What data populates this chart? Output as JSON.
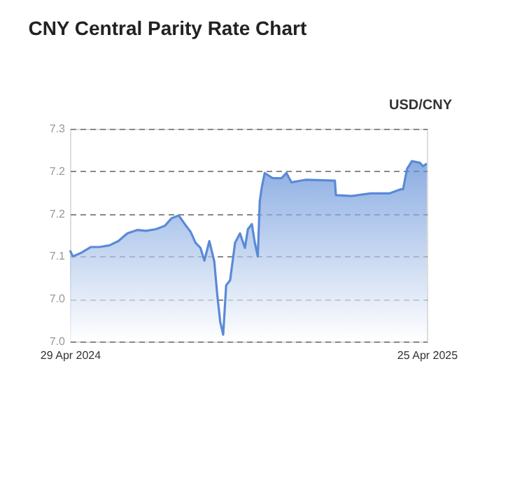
{
  "chart_data": {
    "type": "area",
    "title": "CNY Central Parity Rate Chart",
    "subtitle": "USD/CNY",
    "x": [
      "2024-04-29",
      "2024-05-02",
      "2024-05-10",
      "2024-05-20",
      "2024-05-29",
      "2024-06-08",
      "2024-06-17",
      "2024-06-26",
      "2024-07-06",
      "2024-07-15",
      "2024-07-25",
      "2024-08-03",
      "2024-08-10",
      "2024-08-17",
      "2024-08-25",
      "2024-08-29",
      "2024-09-03",
      "2024-09-08",
      "2024-09-12",
      "2024-09-17",
      "2024-09-22",
      "2024-09-25",
      "2024-09-28",
      "2024-10-01",
      "2024-10-04",
      "2024-10-08",
      "2024-10-13",
      "2024-10-18",
      "2024-10-23",
      "2024-10-26",
      "2024-10-30",
      "2024-11-02",
      "2024-11-05",
      "2024-11-07",
      "2024-11-09",
      "2024-11-12",
      "2024-11-20",
      "2024-11-29",
      "2024-12-04",
      "2024-12-09",
      "2024-12-23",
      "2025-01-22",
      "2025-01-23",
      "2025-02-08",
      "2025-02-27",
      "2025-03-18",
      "2025-03-30",
      "2025-04-01",
      "2025-04-05",
      "2025-04-10",
      "2025-04-18",
      "2025-04-21",
      "2025-04-25"
    ],
    "series": [
      {
        "color": "#5a8ad6",
        "values": [
          7.107,
          7.1,
          7.104,
          7.111,
          7.111,
          7.113,
          7.118,
          7.127,
          7.131,
          7.13,
          7.132,
          7.136,
          7.145,
          7.148,
          7.135,
          7.129,
          7.116,
          7.11,
          7.095,
          7.118,
          7.094,
          7.055,
          7.023,
          7.008,
          7.066,
          7.072,
          7.116,
          7.127,
          7.11,
          7.132,
          7.138,
          7.116,
          7.1,
          7.165,
          7.181,
          7.198,
          7.192,
          7.192,
          7.198,
          7.187,
          7.19,
          7.189,
          7.172,
          7.171,
          7.174,
          7.174,
          7.179,
          7.179,
          7.203,
          7.212,
          7.21,
          7.206,
          7.209
        ]
      }
    ],
    "xlim": [
      "2024-04-29",
      "2025-04-25"
    ],
    "xticks": [
      {
        "value": "2024-04-29",
        "label": "29 Apr 2024"
      },
      {
        "value": "2025-04-25",
        "label": "25 Apr 2025"
      }
    ],
    "ylim": [
      7.0,
      7.25
    ],
    "yticks": [
      {
        "value": 7.0,
        "label": "7.0"
      },
      {
        "value": 7.05,
        "label": "7.0"
      },
      {
        "value": 7.1,
        "label": "7.1"
      },
      {
        "value": 7.15,
        "label": "7.2"
      },
      {
        "value": 7.2,
        "label": "7.2"
      },
      {
        "value": 7.25,
        "label": "7.3"
      }
    ],
    "grid": "y"
  }
}
